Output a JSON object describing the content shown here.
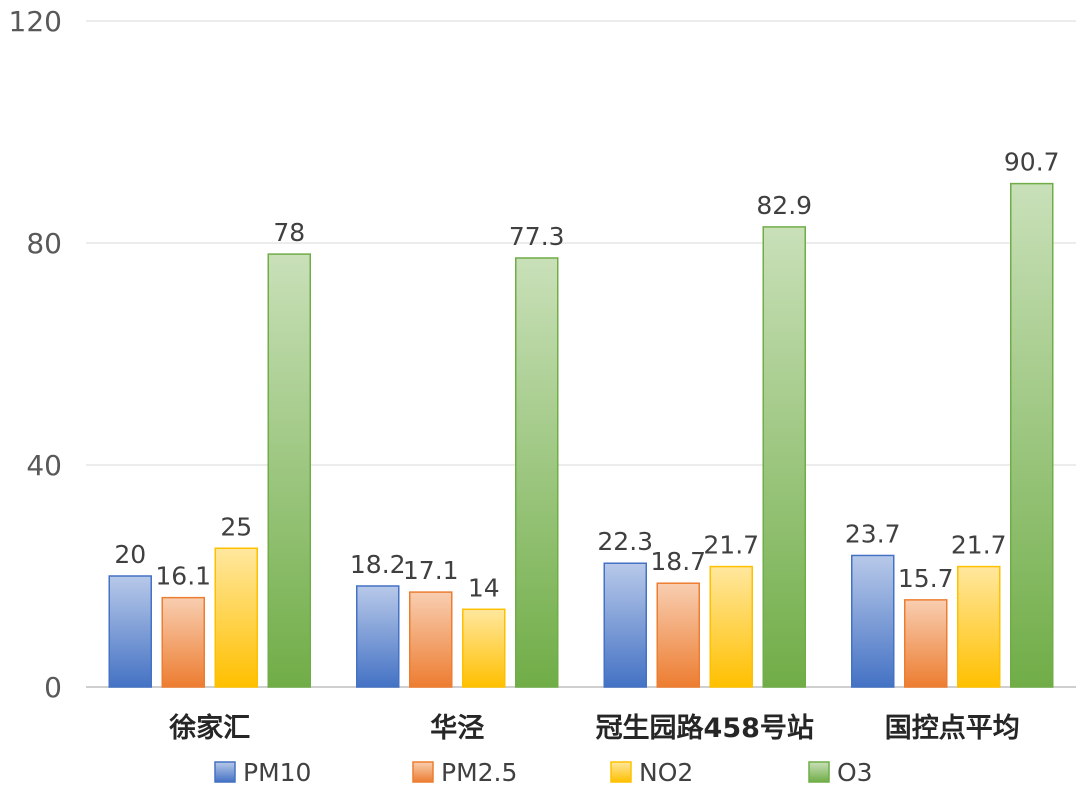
{
  "chart_data": {
    "type": "bar",
    "title": "",
    "xlabel": "",
    "ylabel": "",
    "ylim": [
      0,
      120
    ],
    "yticks": [
      0,
      40,
      80,
      120
    ],
    "grid": true,
    "legend_position": "bottom",
    "categories": [
      "徐家汇",
      "华泾",
      "冠生园路458号站",
      "国控点平均"
    ],
    "series": [
      {
        "name": "PM10",
        "color": "#4472C4",
        "values": [
          20,
          18.2,
          22.3,
          23.7
        ]
      },
      {
        "name": "PM2.5",
        "color": "#ED7D31",
        "values": [
          16.1,
          17.1,
          18.7,
          15.7
        ]
      },
      {
        "name": "NO2",
        "color": "#FFC000",
        "values": [
          25,
          14,
          21.7,
          21.7
        ]
      },
      {
        "name": "O3",
        "color": "#70AD47",
        "values": [
          78,
          77.3,
          82.9,
          90.7
        ]
      }
    ]
  }
}
